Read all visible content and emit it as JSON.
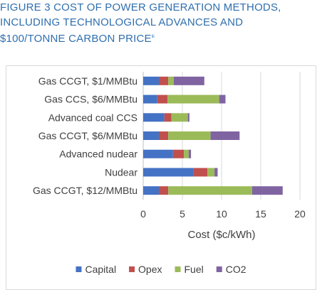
{
  "figure": {
    "title_lines": [
      "FIGURE 3 COST OF POWER GENERATION METHODS,",
      "INCLUDING TECHNOLOGICAL ADVANCES AND",
      "$100/TONNE CARBON PRICE"
    ],
    "title_superscript": "iii"
  },
  "chart_data": {
    "type": "bar",
    "orientation": "horizontal",
    "stacked": true,
    "categories": [
      "Gas CCGT, $1/MMBtu",
      "Gas CCS, $6/MMBtu",
      "Advanced coal CCS",
      "Gas CCGT, $6/MMBtu",
      "Advanced nudear",
      "Nudear",
      "Gas CCGT, $12/MMBtu"
    ],
    "series": [
      {
        "name": "Capital",
        "color": "#4472c4",
        "values": [
          2.0,
          1.8,
          2.7,
          2.0,
          3.8,
          6.4,
          2.0
        ]
      },
      {
        "name": "Opex",
        "color": "#c0504d",
        "values": [
          1.2,
          1.3,
          0.9,
          1.2,
          1.4,
          1.8,
          1.2
        ]
      },
      {
        "name": "Fuel",
        "color": "#9bbb59",
        "values": [
          0.7,
          6.6,
          2.1,
          5.4,
          0.6,
          0.9,
          10.7
        ]
      },
      {
        "name": "CO2",
        "color": "#8064a2",
        "values": [
          3.9,
          0.8,
          0.2,
          3.7,
          0.3,
          0.4,
          3.9
        ]
      }
    ],
    "xlabel": "Cost ($c/kWh)",
    "ylabel": "",
    "xlim": [
      0,
      20
    ],
    "xticks": [
      0,
      5,
      10,
      15,
      20
    ],
    "grid": true,
    "legend_position": "bottom"
  }
}
